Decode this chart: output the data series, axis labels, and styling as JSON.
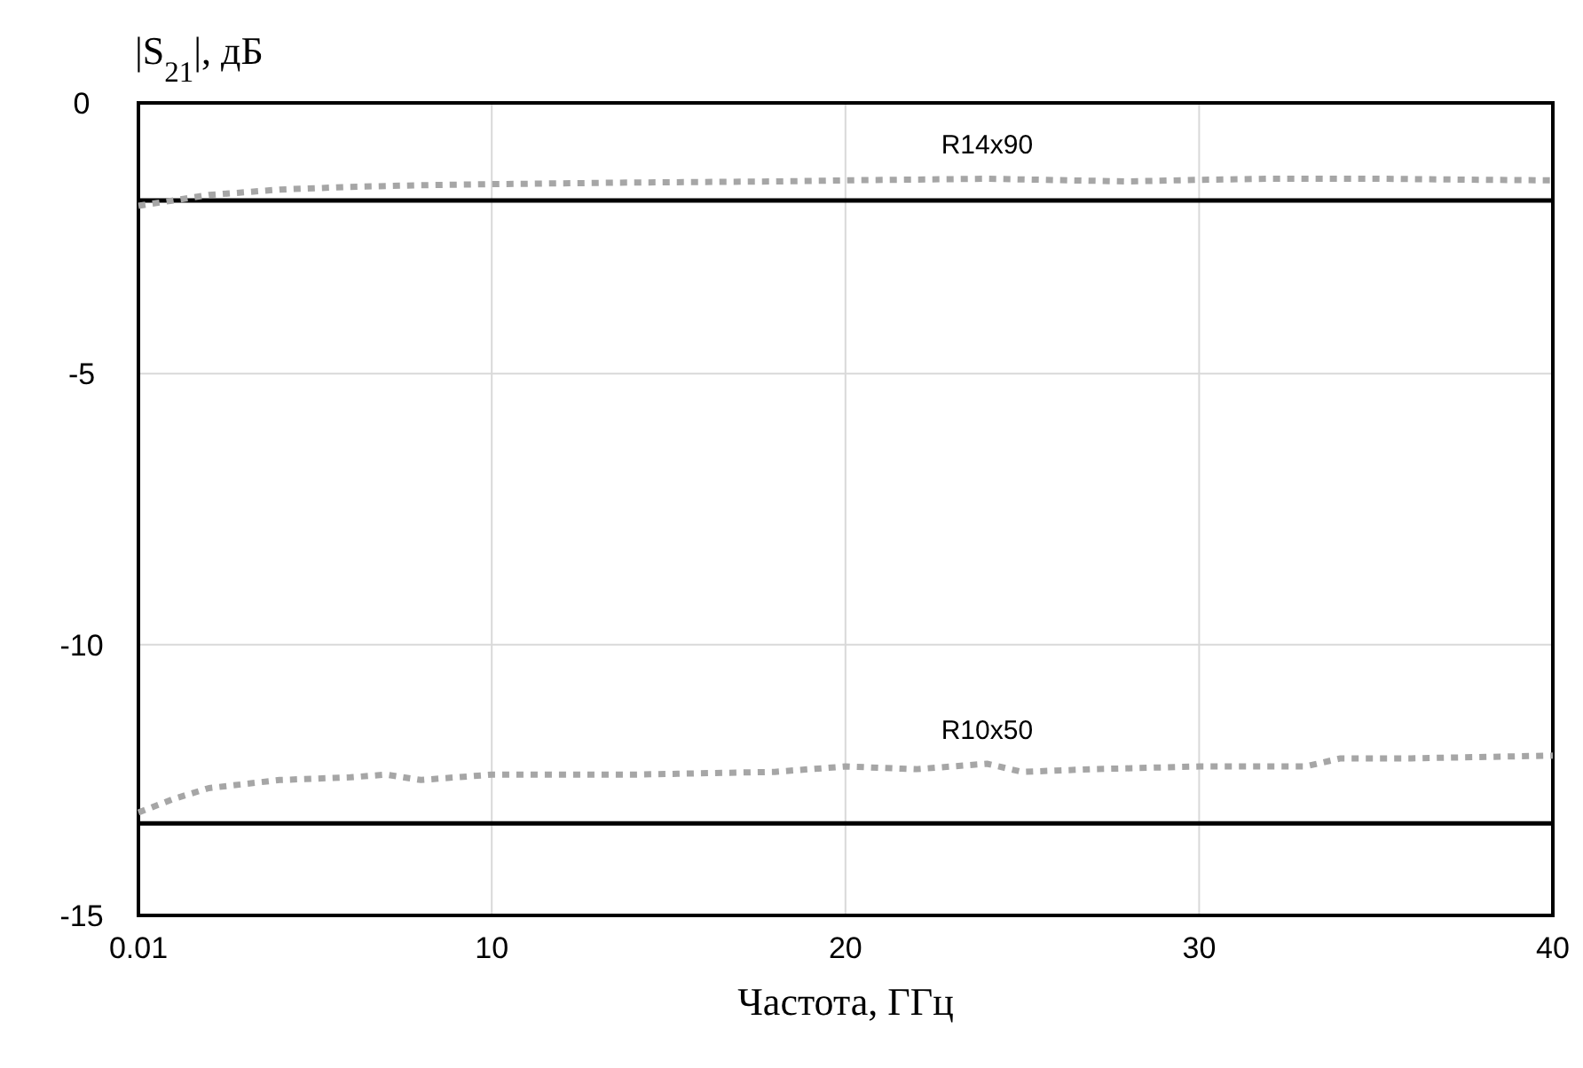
{
  "chart_data": {
    "type": "line",
    "xlabel": "Частота, ГГц",
    "ylabel": "|S$_{21}$|, дБ",
    "xlim": [
      0.01,
      40
    ],
    "xticks": [
      0.01,
      10,
      20,
      30,
      40
    ],
    "ylim": [
      -15,
      0
    ],
    "yticks": [
      0,
      -5,
      -10,
      -15
    ],
    "grid": true,
    "series": [
      {
        "color": "#000000",
        "line_style": "solid",
        "x": [
          0.01,
          40
        ],
        "values": [
          -1.8,
          -1.8
        ]
      },
      {
        "color": "#000000",
        "line_style": "solid",
        "x": [
          0.01,
          40
        ],
        "values": [
          -13.3,
          -13.3
        ]
      },
      {
        "name": "R14x90",
        "color": "#a6a6a6",
        "line_style": "dotted",
        "x": [
          0.01,
          1,
          2,
          4,
          6,
          8,
          10,
          14,
          18,
          20,
          24,
          28,
          30,
          32,
          35,
          38,
          40
        ],
        "values": [
          -1.9,
          -1.8,
          -1.7,
          -1.6,
          -1.55,
          -1.52,
          -1.5,
          -1.47,
          -1.45,
          -1.43,
          -1.4,
          -1.45,
          -1.42,
          -1.4,
          -1.4,
          -1.42,
          -1.43
        ]
      },
      {
        "name": "R10x50",
        "color": "#a6a6a6",
        "line_style": "dotted",
        "x": [
          0.01,
          1,
          2,
          4,
          6,
          7,
          8,
          10,
          14,
          18,
          20,
          22,
          24,
          25,
          27,
          30,
          33,
          34,
          36,
          40
        ],
        "values": [
          -13.1,
          -12.85,
          -12.65,
          -12.5,
          -12.45,
          -12.4,
          -12.5,
          -12.4,
          -12.4,
          -12.35,
          -12.25,
          -12.3,
          -12.2,
          -12.35,
          -12.3,
          -12.25,
          -12.25,
          -12.1,
          -12.1,
          -12.05
        ]
      }
    ]
  }
}
